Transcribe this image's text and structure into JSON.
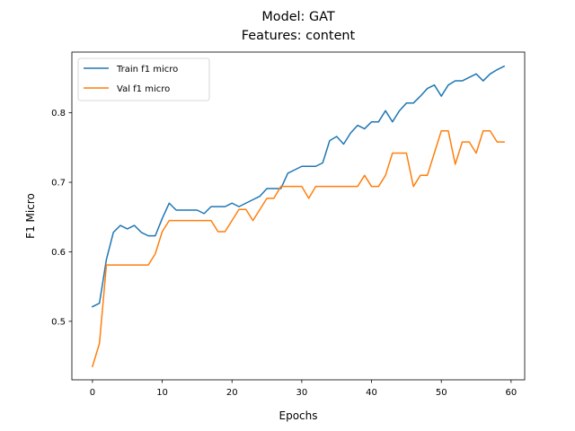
{
  "chart_data": {
    "type": "line",
    "title": "Model: GAT",
    "subtitle": "Features: content",
    "xlabel": "Epochs",
    "ylabel": "F1 Micro",
    "xlim": [
      -2.95,
      61.95
    ],
    "ylim": [
      0.4158,
      0.8874
    ],
    "xticks": [
      0,
      10,
      20,
      30,
      40,
      50,
      60
    ],
    "yticks": [
      0.5,
      0.6,
      0.7,
      0.8
    ],
    "ytick_labels": [
      "0.5",
      "0.6",
      "0.7",
      "0.8"
    ],
    "grid": false,
    "legend_position": "top-left",
    "x": [
      0,
      1,
      2,
      3,
      4,
      5,
      6,
      7,
      8,
      9,
      10,
      11,
      12,
      13,
      14,
      15,
      16,
      17,
      18,
      19,
      20,
      21,
      22,
      23,
      24,
      25,
      26,
      27,
      28,
      29,
      30,
      31,
      32,
      33,
      34,
      35,
      36,
      37,
      38,
      39,
      40,
      41,
      42,
      43,
      44,
      45,
      46,
      47,
      48,
      49,
      50,
      51,
      52,
      53,
      54,
      55,
      56,
      57,
      58,
      59
    ],
    "series": [
      {
        "name": "Train f1 micro",
        "color": "#1f77b4",
        "values": [
          0.521,
          0.526,
          0.589,
          0.628,
          0.638,
          0.633,
          0.638,
          0.628,
          0.623,
          0.623,
          0.648,
          0.67,
          0.66,
          0.66,
          0.66,
          0.66,
          0.655,
          0.665,
          0.665,
          0.665,
          0.67,
          0.665,
          0.67,
          0.675,
          0.68,
          0.691,
          0.691,
          0.691,
          0.713,
          0.718,
          0.723,
          0.723,
          0.723,
          0.728,
          0.76,
          0.766,
          0.755,
          0.771,
          0.782,
          0.777,
          0.787,
          0.787,
          0.803,
          0.787,
          0.803,
          0.814,
          0.814,
          0.824,
          0.835,
          0.84,
          0.824,
          0.84,
          0.846,
          0.846,
          0.851,
          0.856,
          0.846,
          0.856,
          0.862,
          0.867
        ]
      },
      {
        "name": "Val f1 micro",
        "color": "#ff7f0e",
        "values": [
          0.435,
          0.468,
          0.581,
          0.581,
          0.581,
          0.581,
          0.581,
          0.581,
          0.581,
          0.597,
          0.629,
          0.645,
          0.645,
          0.645,
          0.645,
          0.645,
          0.645,
          0.645,
          0.629,
          0.629,
          0.645,
          0.661,
          0.661,
          0.645,
          0.661,
          0.677,
          0.677,
          0.694,
          0.694,
          0.694,
          0.694,
          0.677,
          0.694,
          0.694,
          0.694,
          0.694,
          0.694,
          0.694,
          0.694,
          0.71,
          0.694,
          0.694,
          0.71,
          0.742,
          0.742,
          0.742,
          0.694,
          0.71,
          0.71,
          0.742,
          0.774,
          0.774,
          0.726,
          0.758,
          0.758,
          0.742,
          0.774,
          0.774,
          0.758,
          0.758
        ]
      }
    ]
  }
}
